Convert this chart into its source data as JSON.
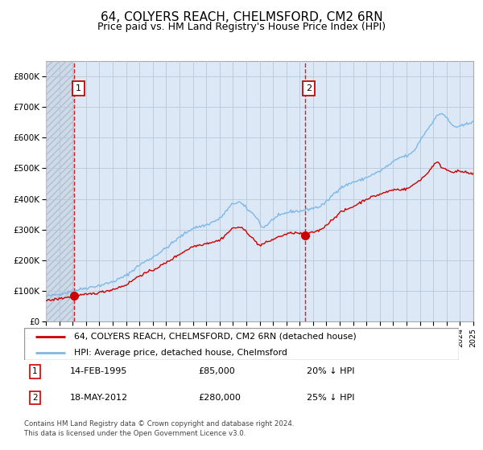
{
  "title1": "64, COLYERS REACH, CHELMSFORD, CM2 6RN",
  "title2": "Price paid vs. HM Land Registry's House Price Index (HPI)",
  "legend_line1": "64, COLYERS REACH, CHELMSFORD, CM2 6RN (detached house)",
  "legend_line2": "HPI: Average price, detached house, Chelmsford",
  "annotation1_date": "14-FEB-1995",
  "annotation1_price": "£85,000",
  "annotation1_hpi": "20% ↓ HPI",
  "annotation2_date": "18-MAY-2012",
  "annotation2_price": "£280,000",
  "annotation2_hpi": "25% ↓ HPI",
  "footer": "Contains HM Land Registry data © Crown copyright and database right 2024.\nThis data is licensed under the Open Government Licence v3.0.",
  "hpi_color": "#7cb8e8",
  "price_color": "#cc0000",
  "dot_color": "#cc0000",
  "vline_color": "#cc0000",
  "bg_color": "#dce8f5",
  "hatch_bg": "#c8d4e0",
  "grid_color": "#b8c8d8",
  "annotation_box_color": "#cc0000",
  "ylim": [
    0,
    850000
  ],
  "yticks": [
    0,
    100000,
    200000,
    300000,
    400000,
    500000,
    600000,
    700000,
    800000
  ],
  "ytick_labels": [
    "£0",
    "£100K",
    "£200K",
    "£300K",
    "£400K",
    "£500K",
    "£600K",
    "£700K",
    "£800K"
  ],
  "purchase1_year": 1995.12,
  "purchase1_price": 85000,
  "purchase2_year": 2012.38,
  "purchase2_price": 280000
}
